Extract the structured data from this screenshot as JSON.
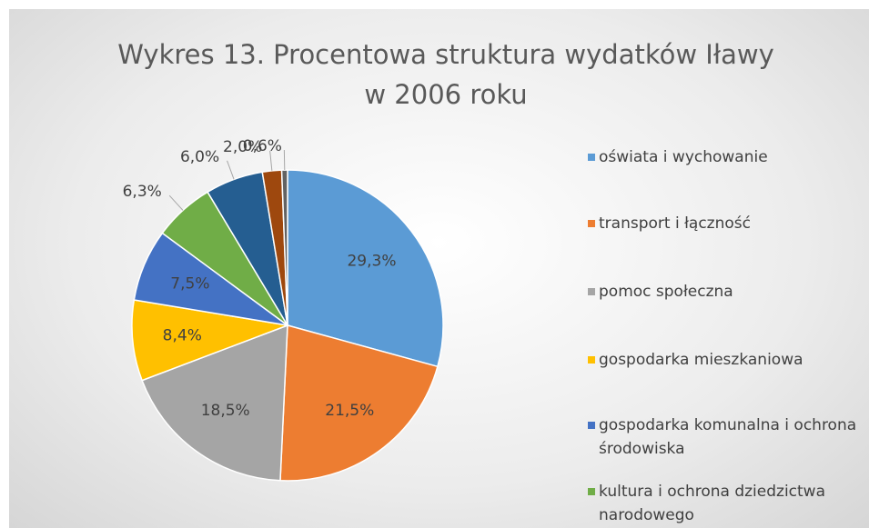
{
  "chart_data": {
    "type": "pie",
    "title": "Wykres 13. Procentowa struktura wydatków Iławy w 2006 roku",
    "categories": [
      "oświata i wychowanie",
      "transport i łączność",
      "pomoc społeczna",
      "gospodarka mieszkaniowa",
      "gospodarka komunalna i ochrona środowiska",
      "kultura i ochrona dziedzictwa narodowego",
      null,
      null,
      null
    ],
    "values": [
      29.3,
      21.5,
      18.5,
      8.4,
      7.5,
      6.3,
      6.0,
      2.0,
      0.6
    ],
    "value_labels": [
      "29,3%",
      "21,5%",
      "18,5%",
      "8,4%",
      "7,5%",
      "6,3%",
      "6,0%",
      "2,0%",
      "0,6%"
    ],
    "colors": [
      "#5b9bd5",
      "#ed7d31",
      "#a5a5a5",
      "#ffc000",
      "#4472c4",
      "#70ad47",
      "#255e91",
      "#9e480e",
      "#636363"
    ],
    "legend": "right"
  }
}
